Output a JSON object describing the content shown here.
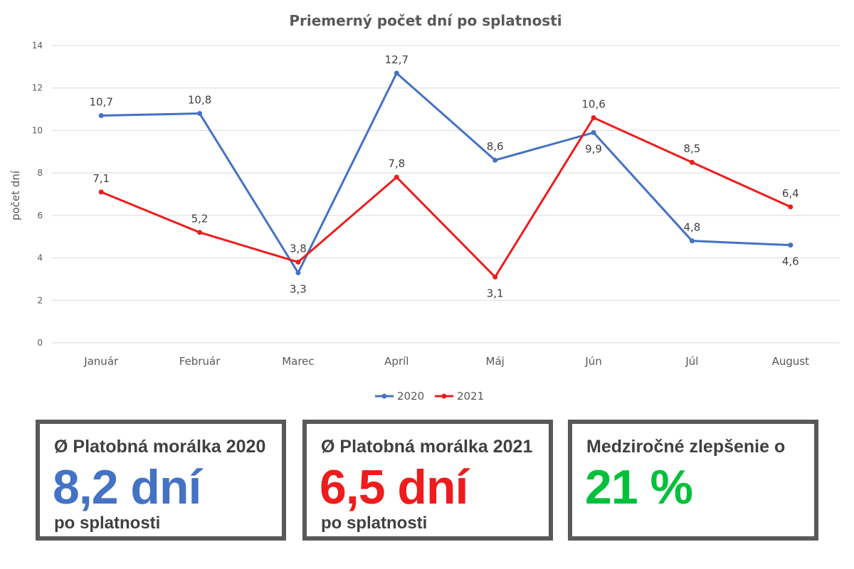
{
  "chart_data": {
    "type": "line",
    "title": "Priemerný počet dní po splatnosti",
    "ylabel": "počet dní",
    "xlabel": "",
    "ylim": [
      0,
      14
    ],
    "yticks": [
      0,
      2,
      4,
      6,
      8,
      10,
      12,
      14
    ],
    "grid": true,
    "legend": "bottom",
    "categories": [
      "Január",
      "Február",
      "Marec",
      "Apríl",
      "Máj",
      "Jún",
      "Júl",
      "August"
    ],
    "series": [
      {
        "name": "2020",
        "color": "#4472c4",
        "values": [
          10.7,
          10.8,
          3.3,
          12.7,
          8.6,
          9.9,
          4.8,
          4.6
        ],
        "labels": [
          "10,7",
          "10,8",
          "3,3",
          "12,7",
          "8,6",
          "9,9",
          "4,8",
          "4,6"
        ]
      },
      {
        "name": "2021",
        "color": "#ee1c1c",
        "values": [
          7.1,
          5.2,
          3.8,
          7.8,
          3.1,
          10.6,
          8.5,
          6.4
        ],
        "labels": [
          "7,1",
          "5,2",
          "3,8",
          "7,8",
          "3,1",
          "10,6",
          "8,5",
          "6,4"
        ]
      }
    ]
  },
  "cards": [
    {
      "title": "Ø Platobná morálka 2020",
      "value": "8,2 dní",
      "subtitle": "po splatnosti",
      "color": "#4472c4"
    },
    {
      "title": "Ø Platobná morálka 2021",
      "value": "6,5 dní",
      "subtitle": "po splatnosti",
      "color": "#ee1c1c"
    },
    {
      "title": "Medziročné zlepšenie o",
      "value": "21 %",
      "subtitle": "",
      "color": "#00c03c"
    }
  ]
}
